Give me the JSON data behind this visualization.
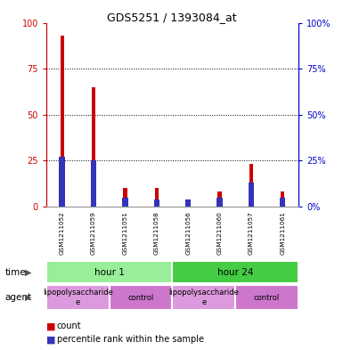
{
  "title": "GDS5251 / 1393084_at",
  "samples": [
    "GSM1211052",
    "GSM1211059",
    "GSM1211051",
    "GSM1211058",
    "GSM1211056",
    "GSM1211060",
    "GSM1211057",
    "GSM1211061"
  ],
  "red_bars": [
    93,
    65,
    10,
    10,
    3,
    8,
    23,
    8
  ],
  "blue_bars": [
    27,
    25,
    5,
    4,
    4,
    5,
    13,
    5
  ],
  "ylim": [
    0,
    100
  ],
  "yticks": [
    0,
    25,
    50,
    75,
    100
  ],
  "red_color": "#cc0000",
  "blue_color": "#3333bb",
  "bg_color": "#ffffff",
  "plot_bg_color": "#ffffff",
  "time_groups": [
    {
      "label": "hour 1",
      "start": 0,
      "end": 4,
      "color": "#99ee99"
    },
    {
      "label": "hour 24",
      "start": 4,
      "end": 8,
      "color": "#44cc44"
    }
  ],
  "agent_groups": [
    {
      "label": "lipopolysaccharide\ne",
      "start": 0,
      "end": 2,
      "color": "#dd99dd"
    },
    {
      "label": "control",
      "start": 2,
      "end": 4,
      "color": "#cc77cc"
    },
    {
      "label": "lipopolysaccharide\ne",
      "start": 4,
      "end": 6,
      "color": "#dd99dd"
    },
    {
      "label": "control",
      "start": 6,
      "end": 8,
      "color": "#cc77cc"
    }
  ],
  "legend_count": "count",
  "legend_percentile": "percentile rank within the sample",
  "axis_left_color": "#cc0000",
  "axis_right_color": "#0000cc",
  "sample_bg_color": "#cccccc",
  "red_bar_width": 0.12,
  "blue_bar_width": 0.18
}
